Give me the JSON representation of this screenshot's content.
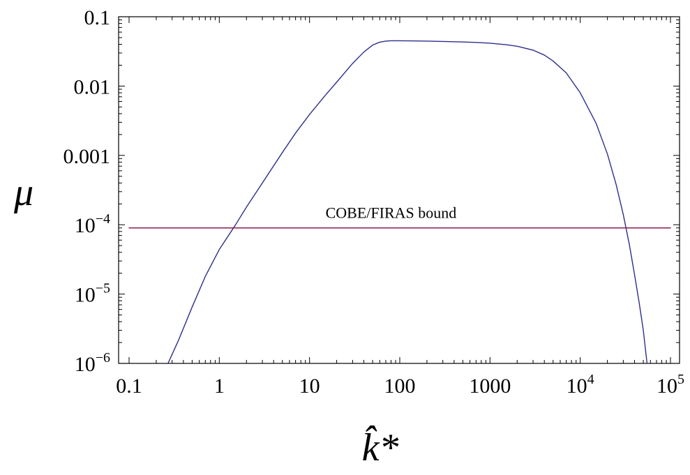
{
  "chart_data": {
    "type": "line",
    "xscale": "log",
    "yscale": "log",
    "xlim": [
      0.1,
      100000
    ],
    "ylim": [
      1e-06,
      0.1
    ],
    "xlabel": "k̂*",
    "ylabel": "μ",
    "xticks": [
      {
        "value": 0.1,
        "label": "0.1"
      },
      {
        "value": 1,
        "label": "1"
      },
      {
        "value": 10,
        "label": "10"
      },
      {
        "value": 100,
        "label": "100"
      },
      {
        "value": 1000,
        "label": "1000"
      },
      {
        "value": 10000,
        "label": "10",
        "exp": "4"
      },
      {
        "value": 100000,
        "label": "10",
        "exp": "5"
      }
    ],
    "yticks": [
      {
        "value": 0.1,
        "label": "0.1"
      },
      {
        "value": 0.01,
        "label": "0.01"
      },
      {
        "value": 0.001,
        "label": "0.001"
      },
      {
        "value": 0.0001,
        "label": "10",
        "exp": "−4"
      },
      {
        "value": 1e-05,
        "label": "10",
        "exp": "−5"
      },
      {
        "value": 1e-06,
        "label": "10",
        "exp": "−6"
      }
    ],
    "series": [
      {
        "color": "#2e2e8c",
        "x": [
          0.27,
          0.35,
          0.5,
          0.7,
          1,
          1.5,
          2,
          3,
          5,
          7,
          10,
          15,
          20,
          30,
          40,
          50,
          60,
          70,
          80,
          100,
          150,
          200,
          300,
          500,
          700,
          1000,
          1500,
          2000,
          3000,
          4000,
          5000,
          7000,
          10000,
          15000,
          20000,
          25000,
          30000,
          35000,
          40000,
          45000,
          50000,
          55000
        ],
        "y": [
          1e-06,
          2.1e-06,
          6.5e-06,
          1.8e-05,
          4.4e-05,
          9.8e-05,
          0.00018,
          0.0004,
          0.0011,
          0.0021,
          0.0039,
          0.0074,
          0.0114,
          0.0212,
          0.031,
          0.039,
          0.043,
          0.0445,
          0.045,
          0.045,
          0.0448,
          0.0445,
          0.044,
          0.0432,
          0.0426,
          0.0415,
          0.0395,
          0.0375,
          0.033,
          0.028,
          0.023,
          0.0155,
          0.008,
          0.0029,
          0.00105,
          0.00038,
          0.00014,
          5.2e-05,
          1.9e-05,
          7.5e-06,
          3e-06,
          1e-06
        ]
      },
      {
        "color": "#8b1e4b",
        "x": [
          0.1,
          100000
        ],
        "y": [
          9e-05,
          9e-05
        ]
      }
    ],
    "annotations": [
      {
        "text": "COBE/FIRAS bound",
        "x": 80,
        "y": 0.000125
      }
    ],
    "grid": false
  }
}
